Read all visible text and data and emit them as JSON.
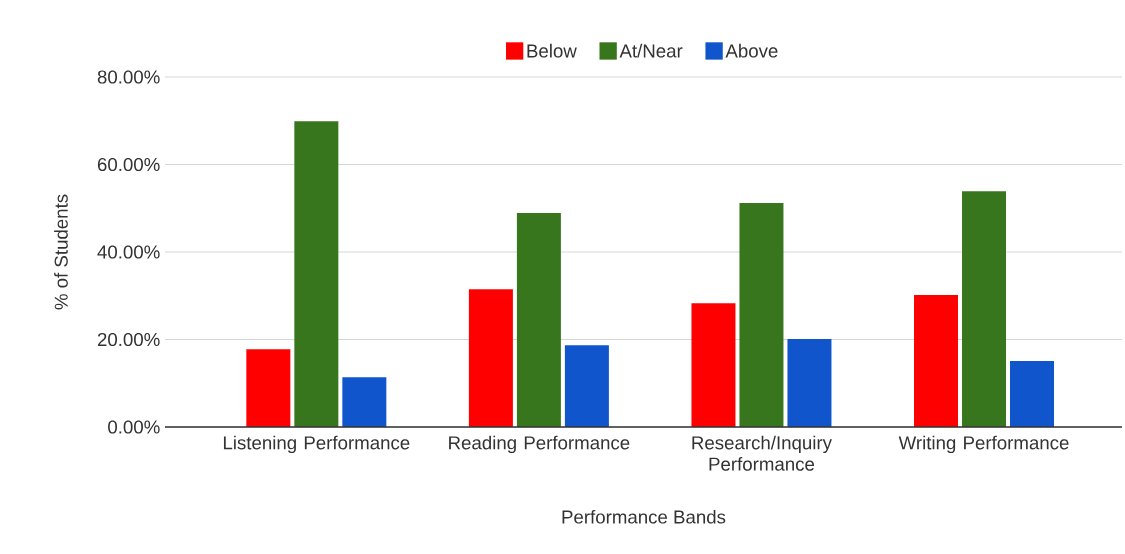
{
  "chart_data": {
    "type": "bar",
    "xlabel": "Performance Bands",
    "ylabel": "% of Students",
    "categories": [
      "Listening Performance",
      "Reading Performance",
      "Research/Inquiry Performance",
      "Writing Performance"
    ],
    "series": [
      {
        "name": "Below",
        "color": "#ff0000",
        "values": [
          17.8,
          31.5,
          28.3,
          30.2
        ]
      },
      {
        "name": "At/Near",
        "color": "#38761d",
        "values": [
          69.9,
          48.9,
          51.2,
          53.9
        ]
      },
      {
        "name": "Above",
        "color": "#1155cc",
        "values": [
          11.4,
          18.7,
          20.1,
          15.1
        ]
      }
    ],
    "ylim": [
      0,
      80
    ],
    "yticks": [
      {
        "value": 0,
        "label": "0.00%"
      },
      {
        "value": 20,
        "label": "20.00%"
      },
      {
        "value": 40,
        "label": "40.00%"
      },
      {
        "value": 60,
        "label": "60.00%"
      },
      {
        "value": 80,
        "label": "80.00%"
      }
    ],
    "grid": "y",
    "legend": "top"
  }
}
